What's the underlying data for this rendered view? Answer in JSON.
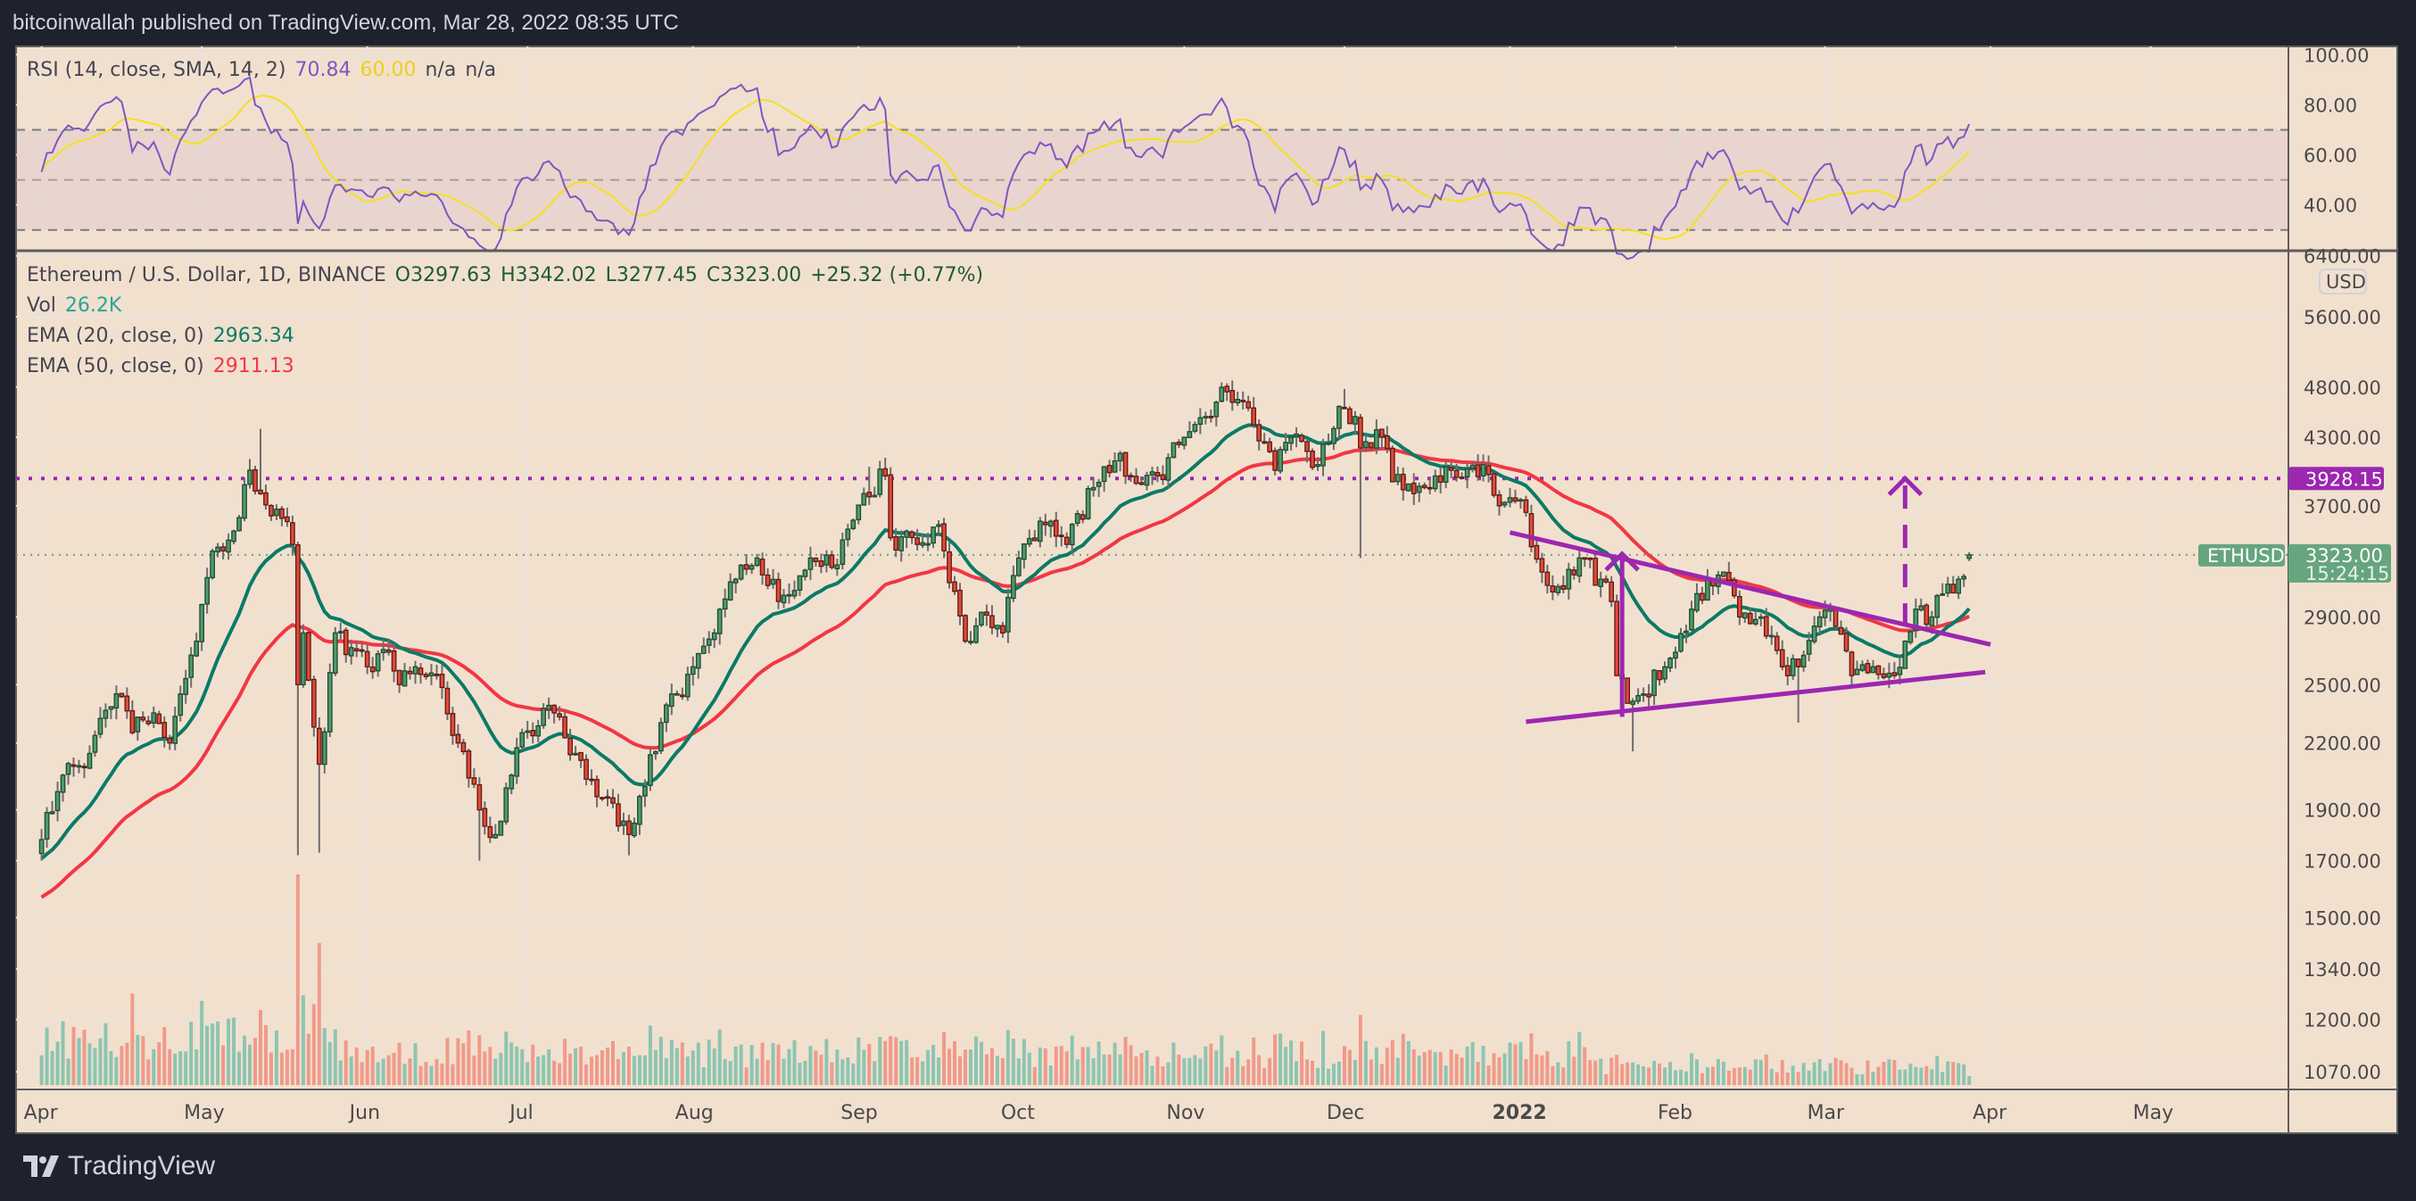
{
  "header": {
    "publisher_line": "bitcoinwallah published on TradingView.com, Mar 28, 2022 08:35 UTC"
  },
  "rsi_legend": {
    "label": "RSI (14, close, SMA, 14, 2)",
    "rsi_value": "70.84",
    "sma_value": "60.00",
    "na1": "n/a",
    "na2": "n/a"
  },
  "price_legend": {
    "symbol": "Ethereum / U.S. Dollar, 1D, BINANCE",
    "open": "O3297.63",
    "high": "H3342.02",
    "low": "L3277.45",
    "close": "C3323.00",
    "change": "+25.32 (+0.77%)",
    "vol_label": "Vol",
    "vol_value": "26.2K",
    "ema20_label": "EMA (20, close, 0)",
    "ema20_value": "2963.34",
    "ema50_label": "EMA (50, close, 0)",
    "ema50_value": "2911.13"
  },
  "price_axis": {
    "currency": "USD",
    "ticks": [
      "6400.00",
      "5600.00",
      "4800.00",
      "4300.00",
      "3700.00",
      "2900.00",
      "2500.00",
      "2200.00",
      "1900.00",
      "1700.00",
      "1500.00",
      "1340.00",
      "1200.00",
      "1070.00"
    ],
    "target_label": "3928.15",
    "symbol_label": "ETHUSD",
    "last_price": "3323.00",
    "countdown": "15:24:15"
  },
  "rsi_axis": {
    "ticks": [
      "100.00",
      "80.00",
      "60.00",
      "40.00"
    ]
  },
  "time_axis": {
    "labels": [
      {
        "date": "2021-04-01",
        "text": "Apr"
      },
      {
        "date": "2021-05-01",
        "text": "May"
      },
      {
        "date": "2021-06-01",
        "text": "Jun"
      },
      {
        "date": "2021-07-01",
        "text": "Jul"
      },
      {
        "date": "2021-08-01",
        "text": "Aug"
      },
      {
        "date": "2021-09-01",
        "text": "Sep"
      },
      {
        "date": "2021-10-01",
        "text": "Oct"
      },
      {
        "date": "2021-11-01",
        "text": "Nov"
      },
      {
        "date": "2021-12-01",
        "text": "Dec"
      },
      {
        "date": "2022-01-01",
        "text": "2022",
        "bold": true
      },
      {
        "date": "2022-02-01",
        "text": "Feb"
      },
      {
        "date": "2022-03-01",
        "text": "Mar"
      },
      {
        "date": "2022-04-01",
        "text": "Apr"
      },
      {
        "date": "2022-05-01",
        "text": "May"
      }
    ]
  },
  "footer": {
    "brand": "TradingView"
  },
  "colors": {
    "background": "#f2e0cf",
    "up": "#4f9a6c",
    "down": "#e04a3a",
    "ema20": "#0b7a66",
    "ema50": "#f23645",
    "rsi": "#7e57c2",
    "rsi_sma": "#f5e020",
    "drawing": "#9c27b0",
    "last_price": "#66a57e"
  },
  "chart_data": {
    "type": "candlestick",
    "title": "Ethereum / U.S. Dollar, 1D, BINANCE",
    "start_date": "2021-04-01",
    "end_date": "2022-03-28",
    "y_scale": "log",
    "ylim": [
      1070,
      6400
    ],
    "close_keypoints": [
      [
        "2021-04-01",
        1780
      ],
      [
        "2021-04-05",
        2050
      ],
      [
        "2021-04-10",
        2150
      ],
      [
        "2021-04-15",
        2450
      ],
      [
        "2021-04-18",
        2250
      ],
      [
        "2021-04-22",
        2350
      ],
      [
        "2021-04-25",
        2200
      ],
      [
        "2021-04-30",
        2750
      ],
      [
        "2021-05-03",
        3350
      ],
      [
        "2021-05-07",
        3500
      ],
      [
        "2021-05-10",
        4000
      ],
      [
        "2021-05-12",
        3800
      ],
      [
        "2021-05-16",
        3600
      ],
      [
        "2021-05-18",
        3400
      ],
      [
        "2021-05-19",
        2500
      ],
      [
        "2021-05-20",
        2800
      ],
      [
        "2021-05-23",
        2100
      ],
      [
        "2021-05-26",
        2800
      ],
      [
        "2021-06-01",
        2600
      ],
      [
        "2021-06-04",
        2700
      ],
      [
        "2021-06-07",
        2500
      ],
      [
        "2021-06-10",
        2600
      ],
      [
        "2021-06-14",
        2550
      ],
      [
        "2021-06-18",
        2200
      ],
      [
        "2021-06-22",
        1900
      ],
      [
        "2021-06-25",
        1800
      ],
      [
        "2021-06-30",
        2250
      ],
      [
        "2021-07-06",
        2350
      ],
      [
        "2021-07-10",
        2150
      ],
      [
        "2021-07-15",
        1950
      ],
      [
        "2021-07-20",
        1800
      ],
      [
        "2021-07-23",
        2000
      ],
      [
        "2021-07-26",
        2300
      ],
      [
        "2021-08-01",
        2600
      ],
      [
        "2021-08-05",
        2800
      ],
      [
        "2021-08-09",
        3150
      ],
      [
        "2021-08-13",
        3300
      ],
      [
        "2021-08-17",
        3000
      ],
      [
        "2021-08-23",
        3300
      ],
      [
        "2021-08-28",
        3250
      ],
      [
        "2021-09-02",
        3800
      ],
      [
        "2021-09-06",
        3950
      ],
      [
        "2021-09-07",
        3450
      ],
      [
        "2021-09-12",
        3400
      ],
      [
        "2021-09-16",
        3550
      ],
      [
        "2021-09-21",
        2750
      ],
      [
        "2021-09-24",
        2930
      ],
      [
        "2021-09-28",
        2800
      ],
      [
        "2021-10-01",
        3300
      ],
      [
        "2021-10-06",
        3550
      ],
      [
        "2021-10-10",
        3400
      ],
      [
        "2021-10-15",
        3850
      ],
      [
        "2021-10-20",
        4150
      ],
      [
        "2021-10-22",
        3950
      ],
      [
        "2021-10-27",
        3950
      ],
      [
        "2021-11-01",
        4300
      ],
      [
        "2021-11-05",
        4500
      ],
      [
        "2021-11-09",
        4750
      ],
      [
        "2021-11-12",
        4650
      ],
      [
        "2021-11-16",
        4250
      ],
      [
        "2021-11-18",
        4000
      ],
      [
        "2021-11-21",
        4300
      ],
      [
        "2021-11-26",
        4050
      ],
      [
        "2021-11-30",
        4600
      ],
      [
        "2021-12-03",
        4500
      ],
      [
        "2021-12-04",
        4200
      ],
      [
        "2021-12-08",
        4300
      ],
      [
        "2021-12-10",
        3900
      ],
      [
        "2021-12-14",
        3800
      ],
      [
        "2021-12-18",
        3950
      ],
      [
        "2021-12-21",
        4000
      ],
      [
        "2021-12-27",
        4050
      ],
      [
        "2021-12-30",
        3700
      ],
      [
        "2022-01-03",
        3750
      ],
      [
        "2022-01-07",
        3200
      ],
      [
        "2022-01-10",
        3100
      ],
      [
        "2022-01-14",
        3300
      ],
      [
        "2022-01-18",
        3150
      ],
      [
        "2022-01-20",
        3000
      ],
      [
        "2022-01-21",
        2550
      ],
      [
        "2022-01-23",
        2400
      ],
      [
        "2022-01-26",
        2450
      ],
      [
        "2022-01-30",
        2600
      ],
      [
        "2022-02-04",
        2950
      ],
      [
        "2022-02-07",
        3150
      ],
      [
        "2022-02-10",
        3200
      ],
      [
        "2022-02-13",
        2900
      ],
      [
        "2022-02-17",
        2900
      ],
      [
        "2022-02-21",
        2600
      ],
      [
        "2022-02-24",
        2600
      ],
      [
        "2022-02-28",
        2900
      ],
      [
        "2022-03-02",
        2950
      ],
      [
        "2022-03-06",
        2550
      ],
      [
        "2022-03-10",
        2600
      ],
      [
        "2022-03-14",
        2550
      ],
      [
        "2022-03-16",
        2750
      ],
      [
        "2022-03-18",
        2950
      ],
      [
        "2022-03-21",
        2900
      ],
      [
        "2022-03-23",
        3050
      ],
      [
        "2022-03-26",
        3150
      ],
      [
        "2022-03-28",
        3323
      ]
    ],
    "wick_extremes": [
      [
        "2021-05-12",
        "high",
        4380
      ],
      [
        "2021-05-19",
        "low",
        1720
      ],
      [
        "2021-05-23",
        "low",
        1730
      ],
      [
        "2021-06-22",
        "low",
        1700
      ],
      [
        "2021-07-20",
        "low",
        1720
      ],
      [
        "2021-09-03",
        "high",
        4030
      ],
      [
        "2021-11-10",
        "high",
        4870
      ],
      [
        "2021-12-01",
        "high",
        4780
      ],
      [
        "2021-12-04",
        "low",
        3300
      ],
      [
        "2022-01-24",
        "low",
        2160
      ],
      [
        "2022-02-24",
        "low",
        2300
      ]
    ],
    "last_candle": {
      "open": 3297.63,
      "high": 3342.02,
      "low": 3277.45,
      "close": 3323.0
    },
    "volume_spikes": [
      [
        "2021-05-19",
        3.2
      ],
      [
        "2021-05-12",
        1.8
      ],
      [
        "2021-04-18",
        1.6
      ],
      [
        "2021-05-23",
        1.7
      ],
      [
        "2021-06-22",
        1.4
      ],
      [
        "2021-12-04",
        1.3
      ],
      [
        "2022-01-21",
        1.3
      ],
      [
        "2022-01-24",
        1.4
      ]
    ],
    "ema_seed": {
      "ema20": 1700,
      "ema50": 1560
    },
    "indicators": {
      "ema20_last": 2963.34,
      "ema50_last": 2911.13,
      "rsi_last": 70.84,
      "rsi_sma_last": 60.0,
      "rsi_bands": [
        70,
        50,
        30
      ]
    },
    "drawings": {
      "horizontal_target": 3928.15,
      "upper_trendline": [
        [
          "2022-01-01",
          3490
        ],
        [
          "2022-04-01",
          2730
        ]
      ],
      "lower_trendline": [
        [
          "2022-01-04",
          2305
        ],
        [
          "2022-03-31",
          2570
        ]
      ],
      "pole_arrow": {
        "date": "2022-01-22",
        "from": 2330,
        "to": 3330
      },
      "target_arrow": {
        "date": "2022-03-16",
        "from": 2840,
        "to": 3928.15
      }
    }
  }
}
